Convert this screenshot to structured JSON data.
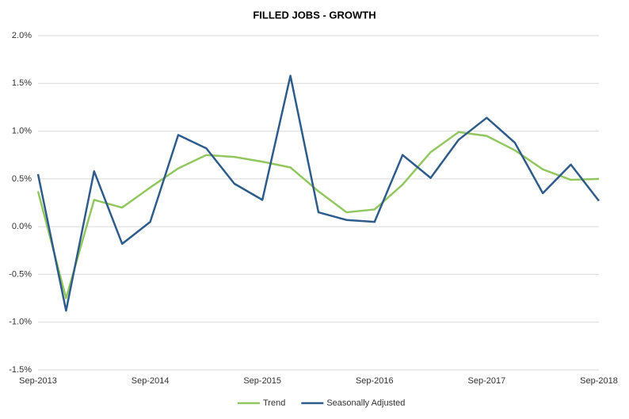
{
  "chart_data": {
    "type": "line",
    "title": "FILLED JOBS - GROWTH",
    "categories": [
      "Sep-2013",
      null,
      null,
      null,
      "Sep-2014",
      null,
      null,
      null,
      "Sep-2015",
      null,
      null,
      null,
      "Sep-2016",
      null,
      null,
      null,
      "Sep-2017",
      null,
      null,
      null,
      "Sep-2018"
    ],
    "series": [
      {
        "name": "Trend",
        "color": "#92c760",
        "values": [
          0.37,
          -0.75,
          0.28,
          0.2,
          0.41,
          0.61,
          0.75,
          0.73,
          0.68,
          0.62,
          0.37,
          0.15,
          0.18,
          0.44,
          0.78,
          0.99,
          0.95,
          0.8,
          0.6,
          0.49,
          0.5
        ]
      },
      {
        "name": "Seasonally Adjusted",
        "color": "#2e5c8a",
        "values": [
          0.55,
          -0.88,
          0.58,
          -0.18,
          0.05,
          0.96,
          0.82,
          0.45,
          0.28,
          1.58,
          0.15,
          0.07,
          0.05,
          0.75,
          0.51,
          0.91,
          1.14,
          0.88,
          0.35,
          0.65,
          0.27
        ]
      }
    ],
    "ylim": [
      -1.5,
      2.0
    ],
    "yticks": [
      {
        "value": -1.5,
        "label": "-1.5%"
      },
      {
        "value": -1.0,
        "label": "-1.0%"
      },
      {
        "value": -0.5,
        "label": "-0.5%"
      },
      {
        "value": 0,
        "label": "0.0%"
      },
      {
        "value": 0.5,
        "label": "0.5%"
      },
      {
        "value": 1.0,
        "label": "1.0%"
      },
      {
        "value": 1.5,
        "label": "1.5%"
      },
      {
        "value": 2.0,
        "label": "2.0%"
      }
    ],
    "grid": true,
    "legend": "bottom"
  }
}
